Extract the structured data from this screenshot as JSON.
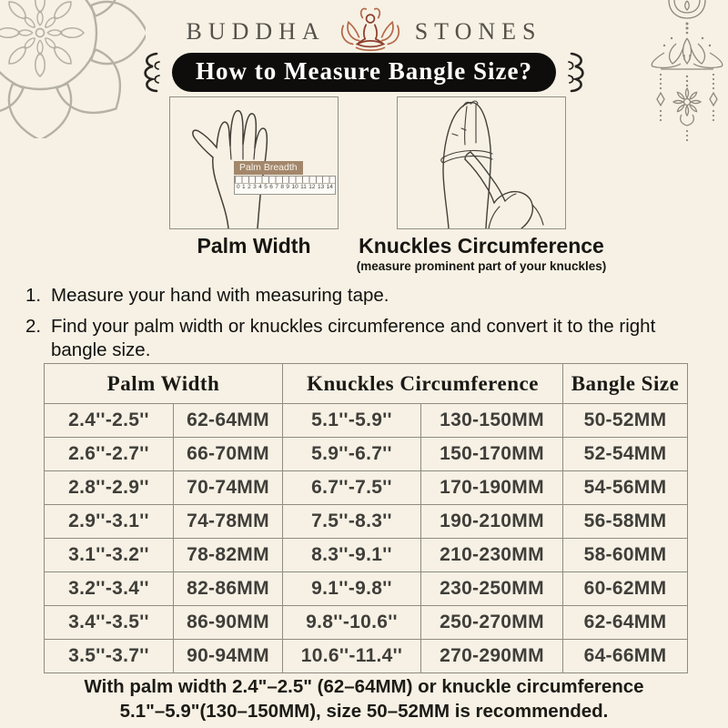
{
  "colors": {
    "background": "#f6f1e4",
    "banner_bg": "#0e0d0c",
    "banner_text": "#ffffff",
    "accent_terracotta": "#a8502f",
    "ornament_gray": "#989487",
    "table_line": "#8f8b81",
    "ruler_label_bg": "#a3876b"
  },
  "header": {
    "brand_left": "BUDDHA",
    "brand_right": "STONES",
    "banner_title": "How to Measure Bangle Size?"
  },
  "illustrations": {
    "palm": {
      "ruler_label": "Palm Breadth",
      "ruler_numbers": [
        "0",
        "1",
        "2",
        "3",
        "4",
        "5",
        "6",
        "7",
        "8",
        "9",
        "10",
        "11",
        "12",
        "13",
        "14"
      ],
      "caption": "Palm Width"
    },
    "knuckles": {
      "caption": "Knuckles Circumference",
      "note": "(measure prominent part of your knuckles)"
    }
  },
  "instructions": [
    {
      "num": "1.",
      "text": "Measure your hand with measuring tape."
    },
    {
      "num": "2.",
      "text": "Find your palm width or knuckles circumference and convert it to the right bangle size."
    }
  ],
  "size_table": {
    "headers": [
      "Palm Width",
      "Knuckles Circumference",
      "Bangle Size"
    ],
    "rows": [
      [
        "2.4''-2.5''",
        "62-64MM",
        "5.1''-5.9''",
        "130-150MM",
        "50-52MM"
      ],
      [
        "2.6''-2.7''",
        "66-70MM",
        "5.9''-6.7''",
        "150-170MM",
        "52-54MM"
      ],
      [
        "2.8''-2.9''",
        "70-74MM",
        "6.7''-7.5''",
        "170-190MM",
        "54-56MM"
      ],
      [
        "2.9''-3.1''",
        "74-78MM",
        "7.5''-8.3''",
        "190-210MM",
        "56-58MM"
      ],
      [
        "3.1''-3.2''",
        "78-82MM",
        "8.3''-9.1''",
        "210-230MM",
        "58-60MM"
      ],
      [
        "3.2''-3.4''",
        "82-86MM",
        "9.1''-9.8''",
        "230-250MM",
        "60-62MM"
      ],
      [
        "3.4''-3.5''",
        "86-90MM",
        "9.8''-10.6''",
        "250-270MM",
        "62-64MM"
      ],
      [
        "3.5''-3.7''",
        "90-94MM",
        "10.6''-11.4''",
        "270-290MM",
        "64-66MM"
      ]
    ]
  },
  "footer": {
    "line1": "With palm width 2.4\"–2.5\" (62–64MM) or knuckle circumference",
    "line2": "5.1\"–5.9\"(130–150MM), size 50–52MM is recommended."
  }
}
